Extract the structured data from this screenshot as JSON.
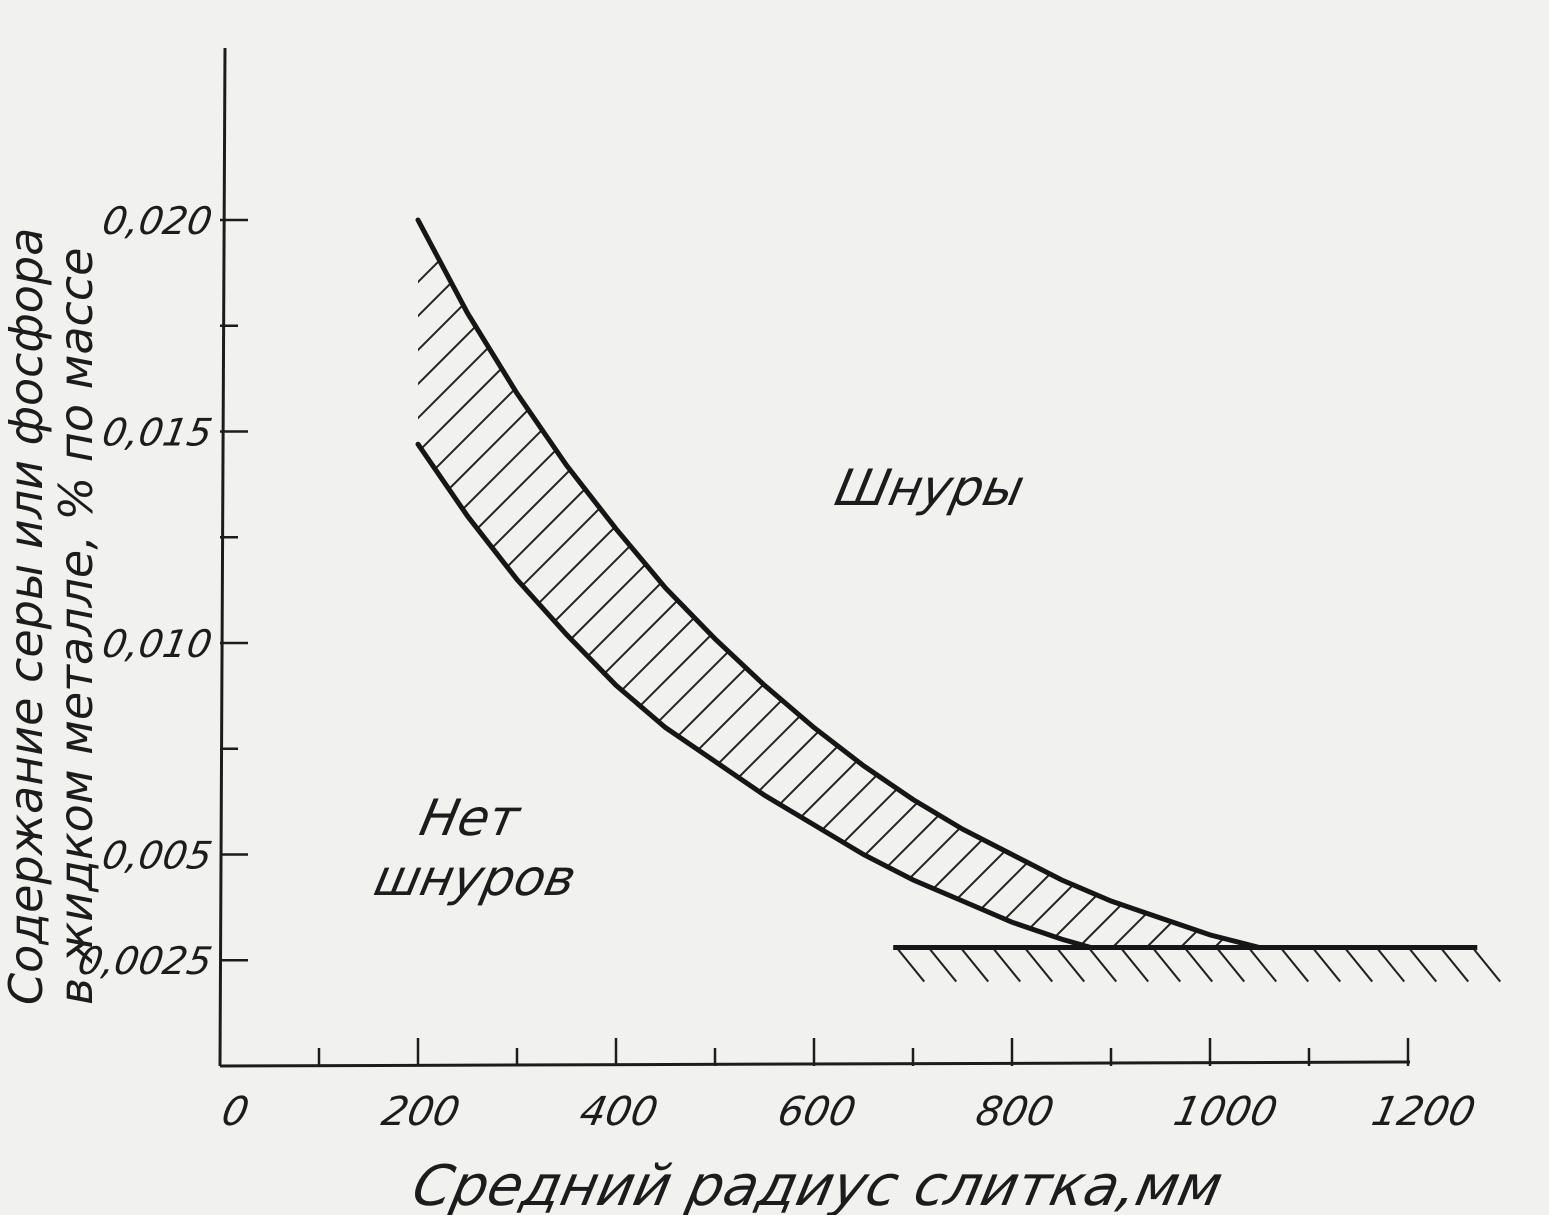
{
  "chart_data": {
    "type": "line",
    "xlabel": "Средний радиус слитка,мм",
    "ylabel_line1": "Содержание серы или фосфора",
    "ylabel_line2": "в жидком металле, % по массе",
    "xlim": [
      0,
      1200
    ],
    "ylim": [
      0,
      0.024
    ],
    "x_ticks": [
      {
        "value": 0,
        "label": "0"
      },
      {
        "value": 200,
        "label": "200"
      },
      {
        "value": 400,
        "label": "400"
      },
      {
        "value": 600,
        "label": "600"
      },
      {
        "value": 800,
        "label": "800"
      },
      {
        "value": 1000,
        "label": "1000"
      },
      {
        "value": 1200,
        "label": "1200"
      }
    ],
    "x_minor_ticks": [
      100,
      300,
      500,
      700,
      900,
      1100
    ],
    "y_ticks": [
      {
        "value": 0.0025,
        "label": "0,0025"
      },
      {
        "value": 0.005,
        "label": "0,005"
      },
      {
        "value": 0.01,
        "label": "0,010"
      },
      {
        "value": 0.015,
        "label": "0,015"
      },
      {
        "value": 0.02,
        "label": "0,020"
      }
    ],
    "y_minor_ticks": [
      0.0075,
      0.0125,
      0.0175
    ],
    "series": [
      {
        "x": [
          200,
          250,
          300,
          350,
          400,
          450,
          500,
          550,
          600,
          650,
          700,
          750,
          800,
          850,
          900,
          950,
          1000,
          1050
        ],
        "y": [
          0.02,
          0.0178,
          0.0159,
          0.0142,
          0.0127,
          0.0113,
          0.0101,
          0.009,
          0.008,
          0.0071,
          0.0063,
          0.0056,
          0.005,
          0.0044,
          0.0039,
          0.0035,
          0.0031,
          0.0028
        ]
      },
      {
        "x": [
          200,
          250,
          300,
          350,
          400,
          450,
          500,
          550,
          600,
          650,
          700,
          750,
          800,
          850,
          880
        ],
        "y": [
          0.0147,
          0.013,
          0.0115,
          0.0102,
          0.009,
          0.008,
          0.0072,
          0.0064,
          0.0057,
          0.005,
          0.0044,
          0.0039,
          0.0034,
          0.003,
          0.0028
        ]
      }
    ],
    "hatched_band": "between series",
    "boundary": {
      "y": 0.0028,
      "x_start": 680,
      "x_end": 1270,
      "hatched_side": "below"
    },
    "regions": [
      {
        "label": "Шнуры"
      },
      {
        "label_line1": "Нет",
        "label_line2": "шнуров"
      }
    ]
  }
}
